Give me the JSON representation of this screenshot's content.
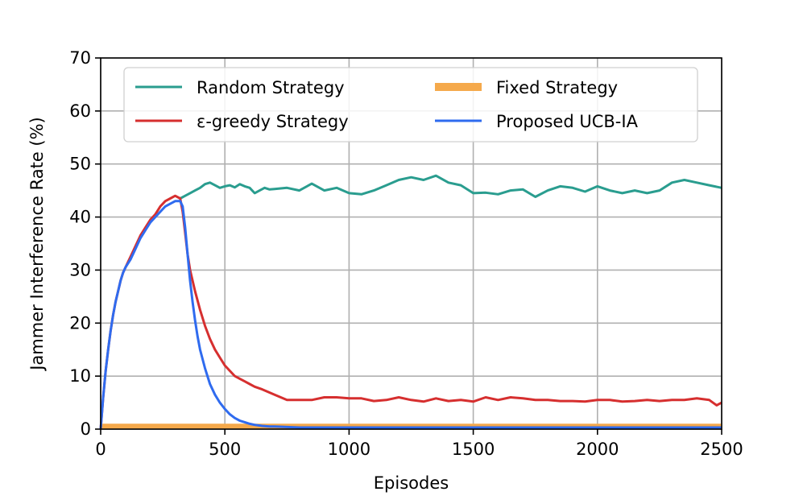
{
  "chart_data": {
    "type": "line",
    "title": "",
    "xlabel": "Episodes",
    "ylabel": "Jammer Interference Rate (%)",
    "xlim": [
      0,
      2500
    ],
    "ylim": [
      0,
      70
    ],
    "xticks": [
      0,
      500,
      1000,
      1500,
      2000,
      2500
    ],
    "yticks": [
      0,
      10,
      20,
      30,
      40,
      50,
      60,
      70
    ],
    "xtick_labels": [
      "0",
      "500",
      "1000",
      "1500",
      "2000",
      "2500"
    ],
    "ytick_labels": [
      "0",
      "10",
      "20",
      "30",
      "40",
      "50",
      "60",
      "70"
    ],
    "grid": true,
    "legend": {
      "placement": "top",
      "columns": 2
    },
    "series": [
      {
        "name": "Random Strategy",
        "color": "#2a9d8f",
        "x": [
          320,
          340,
          360,
          380,
          400,
          420,
          440,
          460,
          480,
          500,
          520,
          540,
          560,
          580,
          600,
          620,
          640,
          660,
          680,
          700,
          750,
          800,
          850,
          900,
          950,
          1000,
          1050,
          1100,
          1150,
          1200,
          1250,
          1300,
          1350,
          1400,
          1450,
          1500,
          1550,
          1600,
          1650,
          1700,
          1750,
          1800,
          1850,
          1900,
          1950,
          2000,
          2050,
          2100,
          2150,
          2200,
          2250,
          2300,
          2350,
          2400,
          2450,
          2500
        ],
        "y": [
          43.5,
          44.0,
          44.5,
          45.0,
          45.5,
          46.2,
          46.5,
          46.0,
          45.5,
          45.8,
          46.0,
          45.6,
          46.2,
          45.8,
          45.5,
          44.5,
          45.0,
          45.5,
          45.2,
          45.3,
          45.5,
          45.0,
          46.3,
          45.0,
          45.5,
          44.5,
          44.3,
          45.0,
          46.0,
          47.0,
          47.5,
          47.0,
          47.8,
          46.5,
          46.0,
          44.5,
          44.6,
          44.3,
          45.0,
          45.2,
          43.8,
          45.0,
          45.8,
          45.5,
          44.8,
          45.8,
          45.0,
          44.5,
          45.0,
          44.5,
          45.0,
          46.5,
          47.0,
          46.5,
          46.0,
          45.5
        ]
      },
      {
        "name": "ε-greedy Strategy",
        "color": "#d62f2f",
        "x": [
          0,
          10,
          20,
          30,
          40,
          50,
          60,
          70,
          80,
          90,
          100,
          120,
          140,
          160,
          180,
          200,
          220,
          240,
          260,
          280,
          300,
          320,
          330,
          340,
          350,
          360,
          380,
          400,
          420,
          440,
          460,
          480,
          500,
          520,
          540,
          560,
          580,
          600,
          620,
          650,
          700,
          750,
          800,
          850,
          900,
          950,
          1000,
          1050,
          1100,
          1150,
          1200,
          1250,
          1300,
          1350,
          1400,
          1450,
          1500,
          1550,
          1600,
          1650,
          1700,
          1750,
          1800,
          1850,
          1900,
          1950,
          2000,
          2050,
          2100,
          2150,
          2200,
          2250,
          2300,
          2350,
          2400,
          2450,
          2480,
          2500
        ],
        "y": [
          0,
          6,
          11,
          15,
          18.5,
          21.5,
          24,
          26,
          28,
          29.5,
          30.5,
          32.5,
          34.5,
          36.5,
          38,
          39.5,
          40.5,
          42,
          43,
          43.5,
          44,
          43.5,
          41,
          37,
          33,
          30,
          26,
          22.5,
          19.5,
          17,
          15,
          13.5,
          12,
          11,
          10,
          9.5,
          9,
          8.5,
          8,
          7.5,
          6.5,
          5.5,
          5.5,
          5.5,
          6,
          6,
          5.8,
          5.8,
          5.3,
          5.5,
          6,
          5.5,
          5.2,
          5.8,
          5.3,
          5.5,
          5.2,
          6,
          5.5,
          6,
          5.8,
          5.5,
          5.5,
          5.3,
          5.3,
          5.2,
          5.5,
          5.5,
          5.2,
          5.3,
          5.5,
          5.3,
          5.5,
          5.5,
          5.8,
          5.5,
          4.5,
          5.0
        ]
      },
      {
        "name": "Fixed Strategy",
        "color": "#f5a94b",
        "x": [
          0,
          2500
        ],
        "y": [
          0.5,
          0.5
        ]
      },
      {
        "name": "Proposed UCB-IA",
        "color": "#2f6bef",
        "x": [
          0,
          10,
          20,
          30,
          40,
          50,
          60,
          70,
          80,
          90,
          100,
          120,
          140,
          160,
          180,
          200,
          220,
          240,
          260,
          280,
          300,
          320,
          330,
          340,
          350,
          360,
          370,
          380,
          390,
          400,
          420,
          440,
          460,
          480,
          500,
          520,
          540,
          560,
          580,
          600,
          620,
          650,
          680,
          700,
          750,
          800,
          850,
          900,
          1000,
          1200,
          1500,
          2000,
          2500
        ],
        "y": [
          0,
          6,
          11,
          15,
          18.5,
          21.5,
          24,
          26,
          28,
          29.5,
          30.5,
          32,
          34,
          36,
          37.5,
          39,
          40,
          41,
          42,
          42.5,
          43,
          43,
          42,
          38,
          33,
          28,
          24,
          20.5,
          17.5,
          15,
          11.5,
          8.5,
          6.5,
          5,
          3.8,
          2.8,
          2.1,
          1.6,
          1.3,
          1.0,
          0.8,
          0.6,
          0.5,
          0.5,
          0.4,
          0.3,
          0.3,
          0.3,
          0.3,
          0.3,
          0.3,
          0.3,
          0.3
        ]
      }
    ]
  }
}
